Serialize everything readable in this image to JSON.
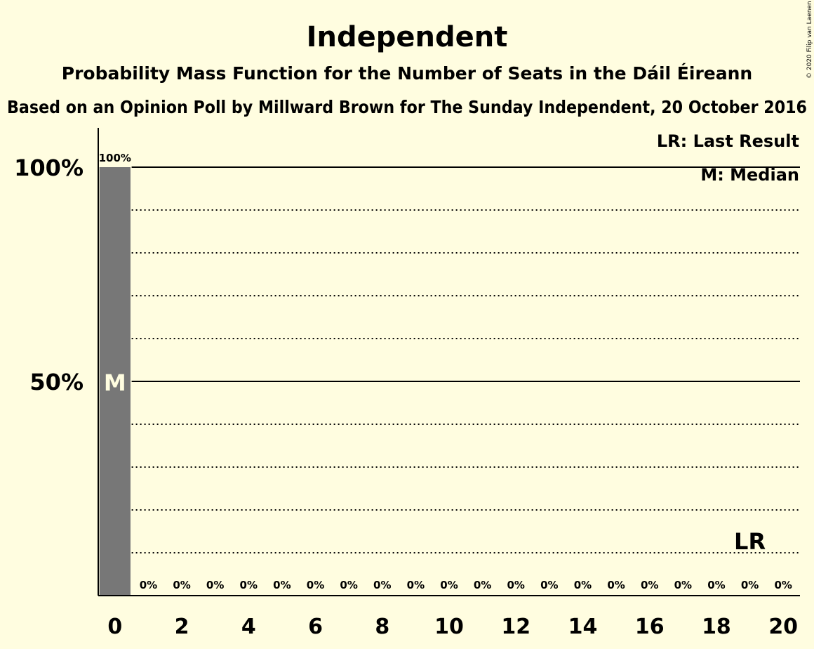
{
  "chart_data": {
    "type": "bar",
    "title": "Independent",
    "subtitle": "Probability Mass Function for the Number of Seats in the Dáil Éireann",
    "source": "Based on an Opinion Poll by Millward Brown for The Sunday Independent, 20 October 2016",
    "copyright": "© 2020 Filip van Laenen",
    "legend": [
      "LR: Last Result",
      "M: Median"
    ],
    "legend_position": "top-right",
    "x": [
      0,
      1,
      2,
      3,
      4,
      5,
      6,
      7,
      8,
      9,
      10,
      11,
      12,
      13,
      14,
      15,
      16,
      17,
      18,
      19,
      20
    ],
    "values": [
      100,
      0,
      0,
      0,
      0,
      0,
      0,
      0,
      0,
      0,
      0,
      0,
      0,
      0,
      0,
      0,
      0,
      0,
      0,
      0,
      0
    ],
    "value_labels": [
      "100%",
      "0%",
      "0%",
      "0%",
      "0%",
      "0%",
      "0%",
      "0%",
      "0%",
      "0%",
      "0%",
      "0%",
      "0%",
      "0%",
      "0%",
      "0%",
      "0%",
      "0%",
      "0%",
      "0%",
      "0%"
    ],
    "x_tick_labels": [
      "0",
      "2",
      "4",
      "6",
      "8",
      "10",
      "12",
      "14",
      "16",
      "18",
      "20"
    ],
    "x_tick_values": [
      0,
      2,
      4,
      6,
      8,
      10,
      12,
      14,
      16,
      18,
      20
    ],
    "y_tick_labels": [
      "50%",
      "100%"
    ],
    "y_tick_values": [
      50,
      100
    ],
    "ylim": [
      0,
      100
    ],
    "xlim": [
      0,
      20
    ],
    "median": 0,
    "median_label": "M",
    "last_result": 19,
    "last_result_label": "LR",
    "bar_color": "#777777",
    "background_color": "#fffde0",
    "grid": "dotted every 10%, solid at 50% and 100%"
  }
}
